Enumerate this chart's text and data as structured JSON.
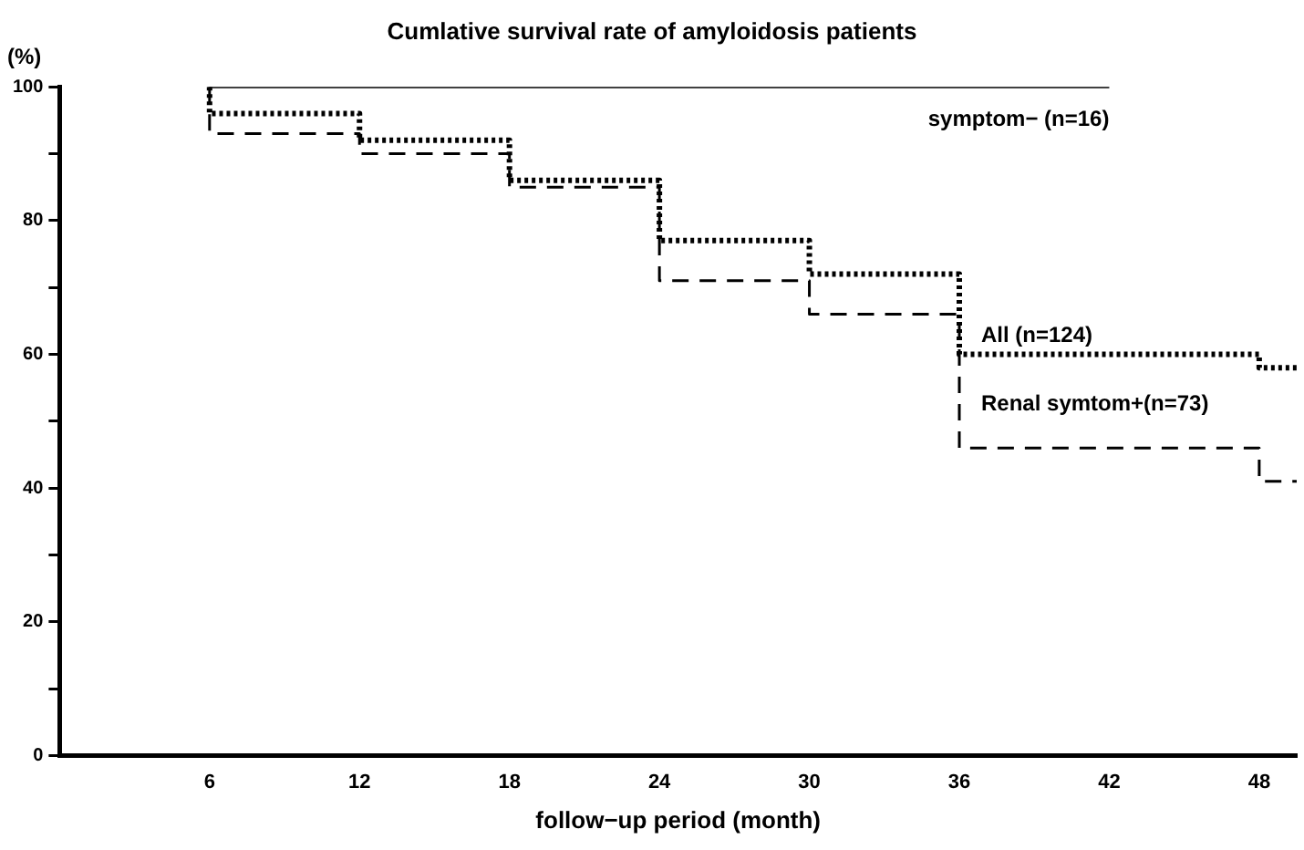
{
  "chart_data": {
    "type": "step",
    "title": "Cumlative survival rate of amyloidosis patients",
    "xlabel": "follow−up period (month)",
    "ylabel": "(%)",
    "xlim": [
      0,
      49.5
    ],
    "xticks": [
      6,
      12,
      18,
      24,
      30,
      36,
      42,
      48
    ],
    "ylim": [
      0,
      100
    ],
    "yticks": [
      0,
      {
        "value": 10,
        "label": null
      },
      20,
      {
        "value": 30,
        "label": null
      },
      40,
      {
        "value": 50,
        "label": null
      },
      60,
      {
        "value": 70,
        "label": null
      },
      80,
      {
        "value": 90,
        "label": null
      },
      100
    ],
    "grid": false,
    "legend": false,
    "marker": "none",
    "series": [
      {
        "name": "symptom− (n=16)",
        "color": "#000000",
        "line_style": "solid",
        "x": [
          6,
          42
        ],
        "values": [
          100,
          100
        ]
      },
      {
        "name": "All (n=124)",
        "color": "#000000",
        "line_style": "dotted",
        "x": [
          6,
          6,
          12,
          18,
          24,
          30,
          36,
          48,
          49.5
        ],
        "values": [
          100,
          96,
          92,
          86,
          77,
          72,
          60,
          58,
          58
        ]
      },
      {
        "name": "Renal symtom+(n=73)",
        "color": "#000000",
        "line_style": "dashed",
        "x": [
          6,
          6,
          12,
          18,
          24,
          30,
          36,
          48,
          49.5
        ],
        "values": [
          100,
          93,
          90,
          85,
          71,
          66,
          46,
          41,
          41
        ]
      }
    ]
  }
}
